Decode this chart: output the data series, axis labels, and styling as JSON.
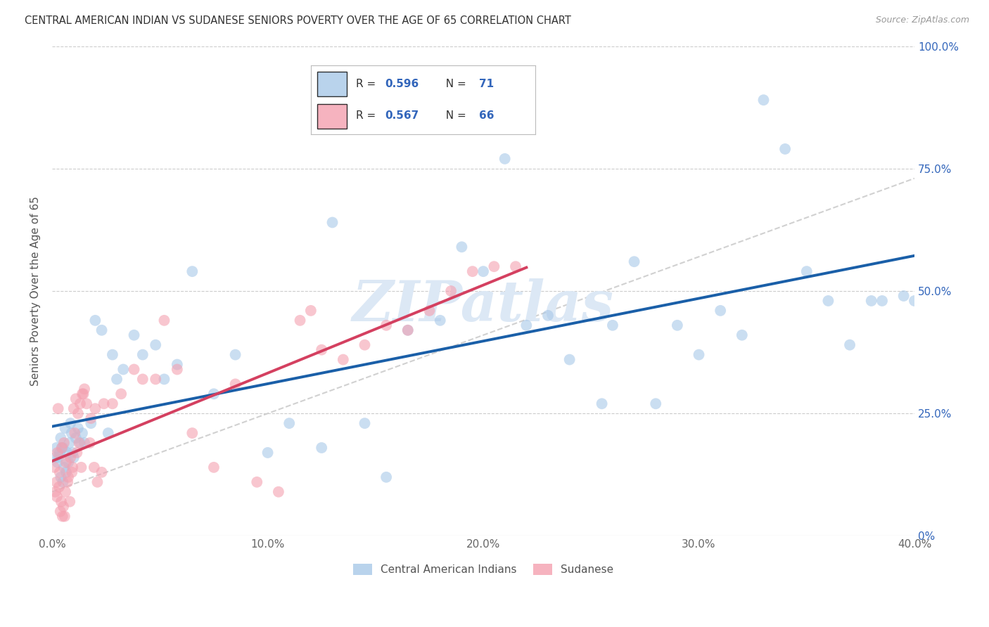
{
  "title": "CENTRAL AMERICAN INDIAN VS SUDANESE SENIORS POVERTY OVER THE AGE OF 65 CORRELATION CHART",
  "source": "Source: ZipAtlas.com",
  "xlabel_vals": [
    0.0,
    10.0,
    20.0,
    30.0,
    40.0
  ],
  "ylabel_vals": [
    0,
    25,
    50,
    75,
    100
  ],
  "ylabel_label": "Seniors Poverty Over the Age of 65",
  "legend_labels": [
    "Central American Indians",
    "Sudanese"
  ],
  "R_blue": 0.596,
  "N_blue": 71,
  "R_pink": 0.567,
  "N_pink": 66,
  "blue_color": "#a8c8e8",
  "pink_color": "#f4a0b0",
  "blue_line_color": "#1a5fa8",
  "pink_line_color": "#d44060",
  "blue_scatter": [
    [
      0.2,
      18
    ],
    [
      0.3,
      16
    ],
    [
      0.4,
      20
    ],
    [
      0.5,
      18
    ],
    [
      0.6,
      22
    ],
    [
      0.7,
      17
    ],
    [
      0.8,
      19
    ],
    [
      0.9,
      21
    ],
    [
      1.0,
      16
    ],
    [
      1.1,
      20
    ],
    [
      1.2,
      22
    ],
    [
      1.3,
      19
    ],
    [
      0.15,
      16
    ],
    [
      0.25,
      15
    ],
    [
      0.35,
      17
    ],
    [
      0.45,
      18
    ],
    [
      0.55,
      14
    ],
    [
      0.65,
      13
    ],
    [
      0.75,
      15
    ],
    [
      0.85,
      23
    ],
    [
      0.95,
      17
    ],
    [
      1.4,
      21
    ],
    [
      1.5,
      19
    ],
    [
      1.8,
      23
    ],
    [
      2.0,
      44
    ],
    [
      2.3,
      42
    ],
    [
      2.6,
      21
    ],
    [
      2.8,
      37
    ],
    [
      3.0,
      32
    ],
    [
      3.3,
      34
    ],
    [
      3.8,
      41
    ],
    [
      4.2,
      37
    ],
    [
      4.8,
      39
    ],
    [
      5.2,
      32
    ],
    [
      5.8,
      35
    ],
    [
      6.5,
      54
    ],
    [
      7.5,
      29
    ],
    [
      8.5,
      37
    ],
    [
      10.0,
      17
    ],
    [
      11.0,
      23
    ],
    [
      12.5,
      18
    ],
    [
      13.0,
      64
    ],
    [
      14.5,
      23
    ],
    [
      15.5,
      12
    ],
    [
      16.5,
      42
    ],
    [
      18.0,
      44
    ],
    [
      19.0,
      59
    ],
    [
      20.0,
      54
    ],
    [
      21.0,
      77
    ],
    [
      22.0,
      43
    ],
    [
      23.0,
      45
    ],
    [
      24.0,
      36
    ],
    [
      25.5,
      27
    ],
    [
      26.0,
      43
    ],
    [
      27.0,
      56
    ],
    [
      28.0,
      27
    ],
    [
      29.0,
      43
    ],
    [
      30.0,
      37
    ],
    [
      31.0,
      46
    ],
    [
      32.0,
      41
    ],
    [
      33.0,
      89
    ],
    [
      34.0,
      79
    ],
    [
      35.0,
      54
    ],
    [
      36.0,
      48
    ],
    [
      37.0,
      39
    ],
    [
      38.0,
      48
    ],
    [
      38.5,
      48
    ],
    [
      39.5,
      49
    ],
    [
      40.0,
      48
    ],
    [
      0.4,
      12
    ],
    [
      0.5,
      11
    ]
  ],
  "pink_scatter": [
    [
      0.1,
      14
    ],
    [
      0.2,
      11
    ],
    [
      0.25,
      17
    ],
    [
      0.35,
      13
    ],
    [
      0.45,
      18
    ],
    [
      0.55,
      19
    ],
    [
      0.65,
      15
    ],
    [
      0.75,
      12
    ],
    [
      0.85,
      16
    ],
    [
      0.95,
      14
    ],
    [
      0.15,
      9
    ],
    [
      0.22,
      8
    ],
    [
      0.32,
      10
    ],
    [
      0.42,
      7
    ],
    [
      0.52,
      6
    ],
    [
      0.62,
      9
    ],
    [
      0.72,
      11
    ],
    [
      0.82,
      7
    ],
    [
      0.92,
      13
    ],
    [
      1.0,
      26
    ],
    [
      1.1,
      28
    ],
    [
      1.2,
      25
    ],
    [
      1.3,
      27
    ],
    [
      1.4,
      29
    ],
    [
      1.5,
      30
    ],
    [
      1.6,
      27
    ],
    [
      1.8,
      24
    ],
    [
      2.0,
      26
    ],
    [
      1.05,
      21
    ],
    [
      1.15,
      17
    ],
    [
      1.25,
      19
    ],
    [
      1.35,
      14
    ],
    [
      1.45,
      29
    ],
    [
      1.75,
      19
    ],
    [
      1.95,
      14
    ],
    [
      2.4,
      27
    ],
    [
      2.8,
      27
    ],
    [
      3.2,
      29
    ],
    [
      3.8,
      34
    ],
    [
      4.2,
      32
    ],
    [
      4.8,
      32
    ],
    [
      5.2,
      44
    ],
    [
      5.8,
      34
    ],
    [
      6.5,
      21
    ],
    [
      7.5,
      14
    ],
    [
      8.5,
      31
    ],
    [
      9.5,
      11
    ],
    [
      10.5,
      9
    ],
    [
      11.5,
      44
    ],
    [
      12.5,
      38
    ],
    [
      13.5,
      36
    ],
    [
      14.5,
      39
    ],
    [
      15.5,
      43
    ],
    [
      16.5,
      42
    ],
    [
      17.5,
      46
    ],
    [
      18.5,
      50
    ],
    [
      19.5,
      54
    ],
    [
      20.5,
      55
    ],
    [
      21.5,
      55
    ],
    [
      0.28,
      26
    ],
    [
      0.38,
      5
    ],
    [
      0.48,
      4
    ],
    [
      0.58,
      4
    ],
    [
      2.1,
      11
    ],
    [
      2.3,
      13
    ],
    [
      12.0,
      46
    ]
  ],
  "watermark_text": "ZIPatlas",
  "figsize": [
    14.06,
    8.92
  ],
  "dpi": 100,
  "xlim": [
    0,
    40
  ],
  "ylim": [
    0,
    100
  ]
}
